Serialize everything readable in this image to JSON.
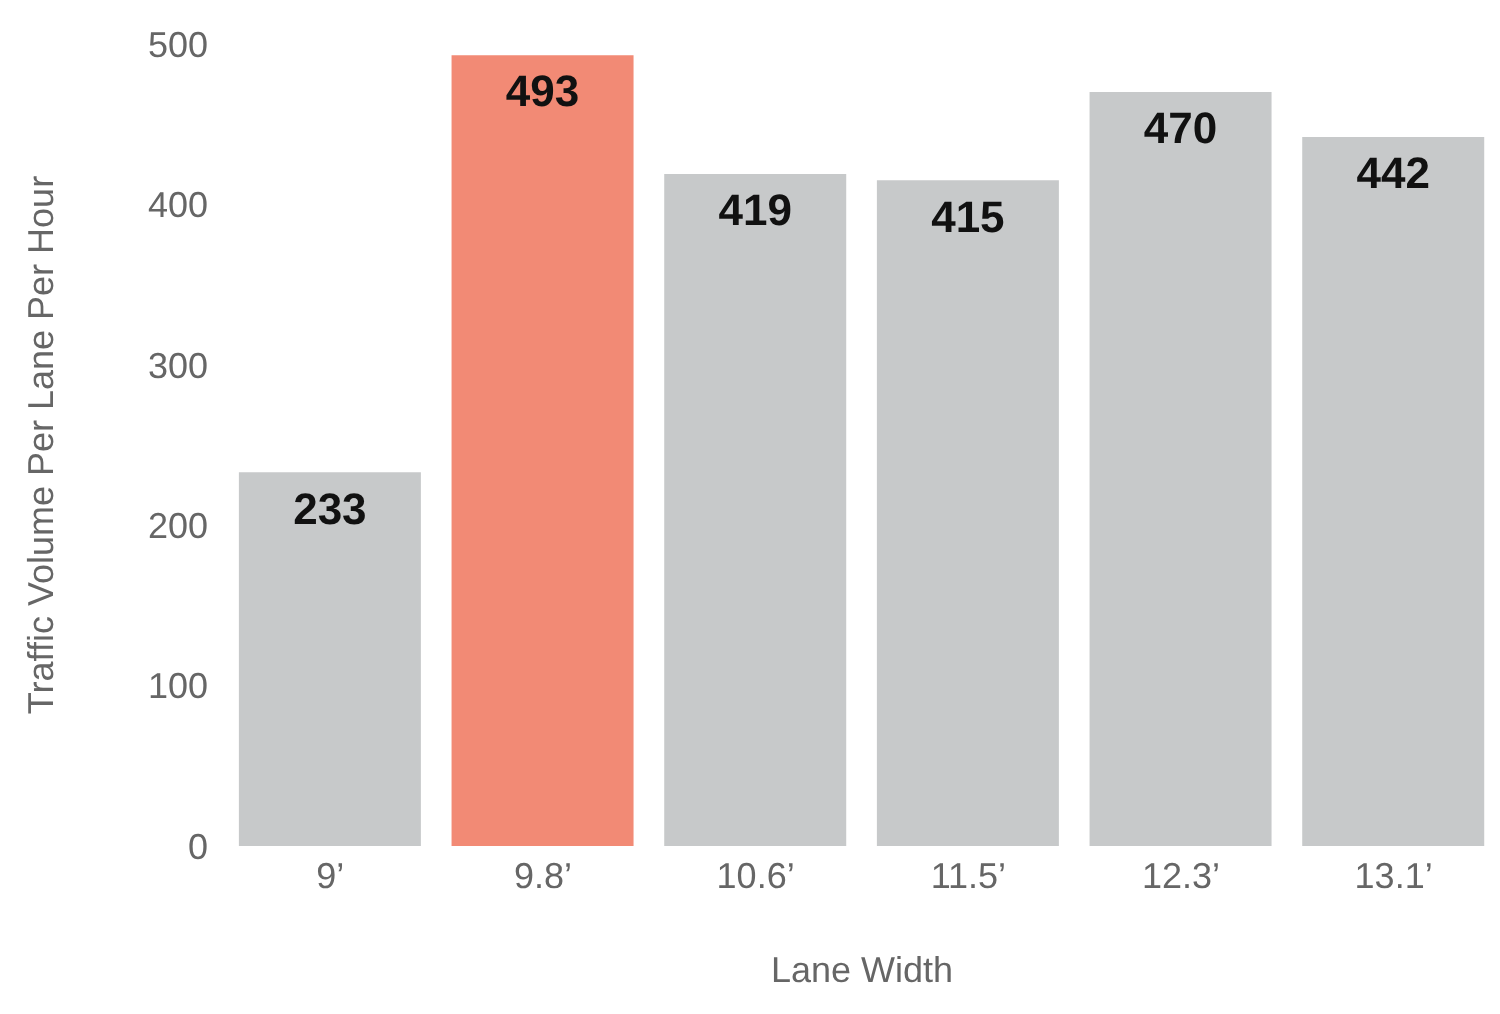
{
  "chart_data": {
    "type": "bar",
    "xlabel": "Lane Width",
    "ylabel": "Traffic Volume Per Lane Per Hour",
    "categories": [
      "9’",
      "9.8’",
      "10.6’",
      "11.5’",
      "12.3’",
      "13.1’"
    ],
    "values": [
      233,
      493,
      419,
      415,
      470,
      442
    ],
    "colors": [
      "#c7c9ca",
      "#f28a75",
      "#c7c9ca",
      "#c7c9ca",
      "#c7c9ca",
      "#c7c9ca"
    ],
    "ylim": [
      0,
      500
    ],
    "yticks": [
      0,
      100,
      200,
      300,
      400,
      500
    ],
    "grid": false,
    "data_labels": true
  }
}
